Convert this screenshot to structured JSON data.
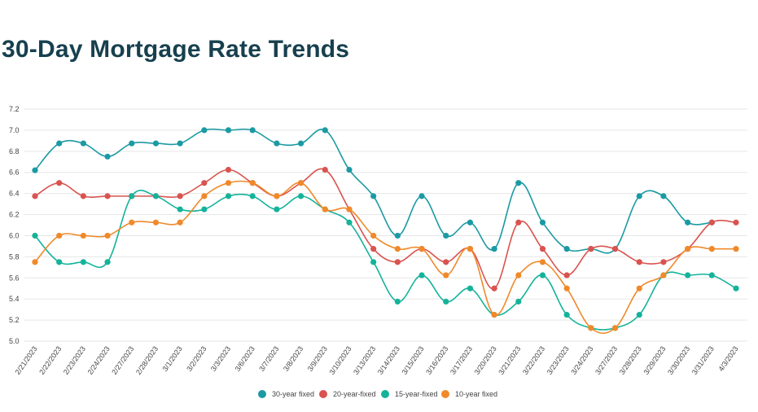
{
  "chart_data": {
    "type": "line",
    "title": "30-Day Mortgage Rate Trends",
    "xlabel": "",
    "ylabel": "",
    "ylim": [
      5.0,
      7.2
    ],
    "yticks": [
      "5.0",
      "5.2",
      "5.4",
      "5.6",
      "5.8",
      "6.0",
      "6.2",
      "6.4",
      "6.6",
      "6.8",
      "7.0",
      "7.2"
    ],
    "grid": true,
    "legend": "bottom-center",
    "categories": [
      "2/21/2023",
      "2/22/2023",
      "2/23/2023",
      "2/24/2023",
      "2/27/2023",
      "2/28/2023",
      "3/1/2023",
      "3/2/2023",
      "3/3/2023",
      "3/6/2023",
      "3/7/2023",
      "3/8/2023",
      "3/9/2023",
      "3/10/2023",
      "3/13/2023",
      "3/14/2023",
      "3/15/2023",
      "3/16/2023",
      "3/17/2023",
      "3/20/2023",
      "3/21/2023",
      "3/22/2023",
      "3/23/2023",
      "3/24/2023",
      "3/27/2023",
      "3/28/2023",
      "3/29/2023",
      "3/30/2023",
      "3/31/2023",
      "4/3/2023"
    ],
    "series": [
      {
        "name": "30-year fixed",
        "color": "#1b9aa3",
        "values": [
          6.62,
          6.875,
          6.875,
          6.75,
          6.875,
          6.875,
          6.875,
          7.0,
          7.0,
          7.0,
          6.875,
          6.875,
          7.0,
          6.625,
          6.375,
          6.0,
          6.375,
          6.0,
          6.125,
          5.875,
          6.5,
          6.125,
          5.875,
          5.875,
          5.875,
          6.375,
          6.375,
          6.125,
          6.125,
          null
        ]
      },
      {
        "name": "20-year-fixed",
        "color": "#d9534f",
        "values": [
          6.375,
          6.5,
          6.375,
          6.375,
          6.375,
          6.375,
          6.375,
          6.5,
          6.625,
          6.5,
          6.375,
          6.5,
          6.625,
          6.25,
          5.875,
          5.75,
          5.875,
          5.75,
          5.875,
          5.5,
          6.125,
          5.875,
          5.625,
          5.875,
          5.875,
          5.75,
          5.75,
          5.875,
          6.125,
          6.125
        ]
      },
      {
        "name": "15-year-fixed",
        "color": "#14b39a",
        "values": [
          6.0,
          5.75,
          5.75,
          5.75,
          6.375,
          6.375,
          6.25,
          6.25,
          6.375,
          6.375,
          6.25,
          6.375,
          6.25,
          6.125,
          5.75,
          5.375,
          5.625,
          5.375,
          5.5,
          5.25,
          5.375,
          5.625,
          5.25,
          5.125,
          5.125,
          5.25,
          5.625,
          5.625,
          5.625,
          5.5
        ]
      },
      {
        "name": "10-year fixed",
        "color": "#f0892a",
        "values": [
          5.75,
          6.0,
          6.0,
          6.0,
          6.125,
          6.125,
          6.125,
          6.375,
          6.5,
          6.5,
          6.375,
          6.5,
          6.25,
          6.25,
          6.0,
          5.875,
          5.875,
          5.625,
          5.875,
          5.25,
          5.625,
          5.75,
          5.5,
          5.125,
          5.125,
          5.5,
          5.625,
          5.875,
          5.875,
          5.875
        ]
      }
    ]
  }
}
